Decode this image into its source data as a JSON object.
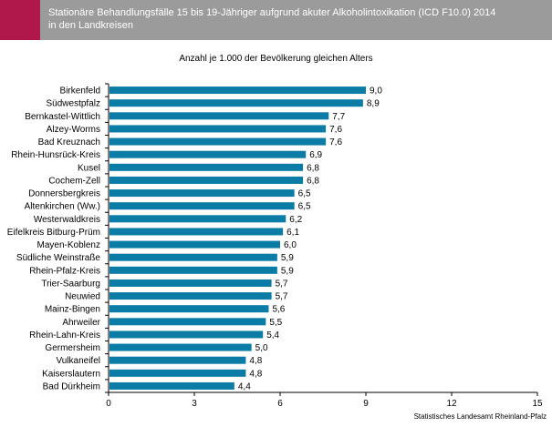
{
  "header": {
    "title": "Stationäre Behandlungsfälle 15 bis 19-Jähriger aufgrund akuter Alkoholintoxikation (ICD F10.0) 2014\nin den Landkreisen"
  },
  "source": "Statistisches Landesamt Rheinland-Pfalz",
  "colors": {
    "bar": "#0a7ca5",
    "header": "#9b9b9b",
    "accent": "#b0174a"
  },
  "chart_data": {
    "type": "bar",
    "orientation": "horizontal",
    "title": "Anzahl je 1.000 der Bevölkerung gleichen Alters",
    "xlabel": "",
    "ylabel": "",
    "xlim": [
      0,
      15
    ],
    "xticks": [
      "0",
      "3",
      "6",
      "9",
      "12",
      "15"
    ],
    "grid": false,
    "categories": [
      "Birkenfeld",
      "Südwestpfalz",
      "Bernkastel-Wittlich",
      "Alzey-Worms",
      "Bad Kreuznach",
      "Rhein-Hunsrück-Kreis",
      "Kusel",
      "Cochem-Zell",
      "Donnersbergkreis",
      "Altenkirchen (Ww.)",
      "Westerwaldkreis",
      "Eifelkreis Bitburg-Prüm",
      "Mayen-Koblenz",
      "Südliche Weinstraße",
      "Rhein-Pfalz-Kreis",
      "Trier-Saarburg",
      "Neuwied",
      "Mainz-Bingen",
      "Ahrweiler",
      "Rhein-Lahn-Kreis",
      "Germersheim",
      "Vulkaneifel",
      "Kaiserslautern",
      "Bad Dürkheim"
    ],
    "values": [
      9.0,
      8.9,
      7.7,
      7.6,
      7.6,
      6.9,
      6.8,
      6.8,
      6.5,
      6.5,
      6.2,
      6.1,
      6.0,
      5.9,
      5.9,
      5.7,
      5.7,
      5.6,
      5.5,
      5.4,
      5.0,
      4.8,
      4.8,
      4.4
    ],
    "labels": [
      "9,0",
      "8,9",
      "7,7",
      "7,6",
      "7,6",
      "6,9",
      "6,8",
      "6,8",
      "6,5",
      "6,5",
      "6,2",
      "6,1",
      "6,0",
      "5,9",
      "5,9",
      "5,7",
      "5,7",
      "5,6",
      "5,5",
      "5,4",
      "5,0",
      "4,8",
      "4,8",
      "4,4"
    ]
  }
}
